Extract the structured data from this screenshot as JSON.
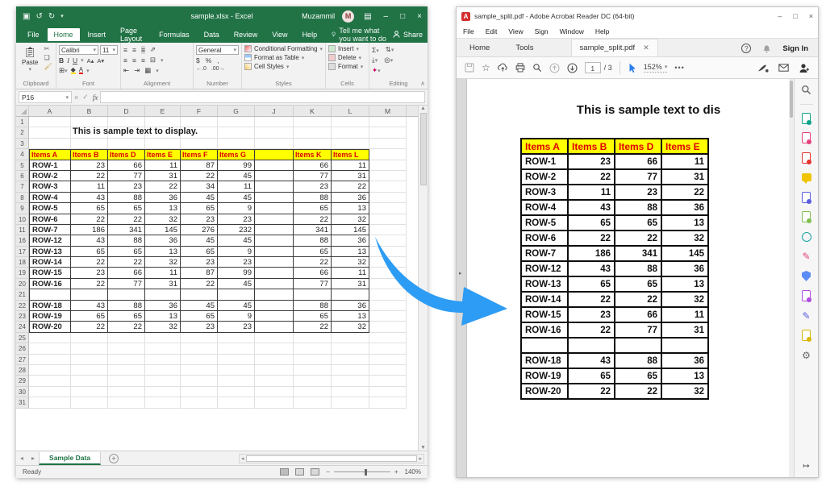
{
  "excel": {
    "title": "sample.xlsx - Excel",
    "user": "Muzammil",
    "avatar_letter": "M",
    "menu_tabs": [
      "File",
      "Home",
      "Insert",
      "Page Layout",
      "Formulas",
      "Data",
      "Review",
      "View",
      "Help"
    ],
    "active_tab": "Home",
    "tell_me": "Tell me what you want to do",
    "share_label": "Share",
    "ribbon": {
      "paste_label": "Paste",
      "font_name": "Calibri",
      "font_size": "11",
      "bold": "B",
      "italic": "I",
      "underline": "U",
      "number_format": "General",
      "styles_buttons": [
        "Conditional Formatting",
        "Format as Table",
        "Cell Styles"
      ],
      "cells_buttons": [
        "Insert",
        "Delete",
        "Format"
      ],
      "group_labels": [
        "Clipboard",
        "Font",
        "Alignment",
        "Number",
        "Styles",
        "Cells",
        "Editing"
      ]
    },
    "formula_bar": {
      "name_box": "P16",
      "fx": "fx"
    },
    "grid": {
      "columns": [
        "A",
        "B",
        "D",
        "E",
        "F",
        "G",
        "J",
        "K",
        "L",
        "M"
      ],
      "rows": [
        {
          "num": 1
        },
        {
          "num": 2,
          "text_overlay": "This is sample text to display."
        },
        {
          "num": 3
        },
        {
          "num": 4,
          "type": "header",
          "cells": [
            "Items A",
            "Items B",
            "Items D",
            "Items E",
            "Items F",
            "Items G",
            "",
            "Items K",
            "Items L"
          ]
        },
        {
          "num": 5,
          "type": "data",
          "label": "ROW-1",
          "values": [
            23,
            66,
            11,
            87,
            99,
            "",
            66,
            11
          ]
        },
        {
          "num": 6,
          "type": "data",
          "label": "ROW-2",
          "values": [
            22,
            77,
            31,
            22,
            45,
            "",
            77,
            31
          ]
        },
        {
          "num": 7,
          "type": "data",
          "label": "ROW-3",
          "values": [
            11,
            23,
            22,
            34,
            11,
            "",
            23,
            22
          ]
        },
        {
          "num": 8,
          "type": "data",
          "label": "ROW-4",
          "values": [
            43,
            88,
            36,
            45,
            45,
            "",
            88,
            36
          ]
        },
        {
          "num": 9,
          "type": "data",
          "label": "ROW-5",
          "values": [
            65,
            65,
            13,
            65,
            9,
            "",
            65,
            13
          ]
        },
        {
          "num": 10,
          "type": "data",
          "label": "ROW-6",
          "values": [
            22,
            22,
            32,
            23,
            23,
            "",
            22,
            32
          ]
        },
        {
          "num": 11,
          "type": "data",
          "label": "ROW-7",
          "values": [
            186,
            341,
            145,
            276,
            232,
            "",
            341,
            145
          ]
        },
        {
          "num": 16,
          "type": "data",
          "label": "ROW-12",
          "values": [
            43,
            88,
            36,
            45,
            45,
            "",
            88,
            36
          ]
        },
        {
          "num": 17,
          "type": "data",
          "label": "ROW-13",
          "values": [
            65,
            65,
            13,
            65,
            9,
            "",
            65,
            13
          ]
        },
        {
          "num": 18,
          "type": "data",
          "label": "ROW-14",
          "values": [
            22,
            22,
            32,
            23,
            23,
            "",
            22,
            32
          ]
        },
        {
          "num": 19,
          "type": "data",
          "label": "ROW-15",
          "values": [
            23,
            66,
            11,
            87,
            99,
            "",
            66,
            11
          ]
        },
        {
          "num": 20,
          "type": "data",
          "label": "ROW-16",
          "values": [
            22,
            77,
            31,
            22,
            45,
            "",
            77,
            31
          ]
        },
        {
          "num": 21,
          "type": "empty"
        },
        {
          "num": 22,
          "type": "data",
          "label": "ROW-18",
          "values": [
            43,
            88,
            36,
            45,
            45,
            "",
            88,
            36
          ]
        },
        {
          "num": 23,
          "type": "data",
          "label": "ROW-19",
          "values": [
            65,
            65,
            13,
            65,
            9,
            "",
            65,
            13
          ]
        },
        {
          "num": 24,
          "type": "data",
          "label": "ROW-20",
          "values": [
            22,
            22,
            32,
            23,
            23,
            "",
            22,
            32
          ]
        },
        {
          "num": 25
        },
        {
          "num": 26
        },
        {
          "num": 27
        },
        {
          "num": 28
        },
        {
          "num": 29
        },
        {
          "num": 30
        },
        {
          "num": 31
        }
      ]
    },
    "sheet_tab": "Sample Data",
    "status": "Ready",
    "zoom": "140%"
  },
  "arrow": {
    "color": "#2d9cf4"
  },
  "pdf": {
    "title": "sample_split.pdf - Adobe Acrobat Reader DC (64-bit)",
    "app_icon_letter": "A",
    "menus": [
      "File",
      "Edit",
      "View",
      "Sign",
      "Window",
      "Help"
    ],
    "tabs": [
      "Home",
      "Tools"
    ],
    "doc_tab": "sample_split.pdf",
    "sign_in": "Sign In",
    "page_current": "1",
    "page_total": "/ 3",
    "zoom": "152%",
    "doc": {
      "title": "This is sample text to dis",
      "table_headers": [
        "Items A",
        "Items B",
        "Items D",
        "Items E"
      ],
      "table_rows": [
        {
          "label": "ROW-1",
          "values": [
            23,
            66,
            11
          ]
        },
        {
          "label": "ROW-2",
          "values": [
            22,
            77,
            31
          ]
        },
        {
          "label": "ROW-3",
          "values": [
            11,
            23,
            22
          ]
        },
        {
          "label": "ROW-4",
          "values": [
            43,
            88,
            36
          ]
        },
        {
          "label": "ROW-5",
          "values": [
            65,
            65,
            13
          ]
        },
        {
          "label": "ROW-6",
          "values": [
            22,
            22,
            32
          ]
        },
        {
          "label": "ROW-7",
          "values": [
            186,
            341,
            145
          ]
        },
        {
          "label": "ROW-12",
          "values": [
            43,
            88,
            36
          ]
        },
        {
          "label": "ROW-13",
          "values": [
            65,
            65,
            13
          ]
        },
        {
          "label": "ROW-14",
          "values": [
            22,
            22,
            32
          ]
        },
        {
          "label": "ROW-15",
          "values": [
            23,
            66,
            11
          ]
        },
        {
          "label": "ROW-16",
          "values": [
            22,
            77,
            31
          ]
        },
        {
          "label": "",
          "values": [
            "",
            "",
            ""
          ]
        },
        {
          "label": "ROW-18",
          "values": [
            43,
            88,
            36
          ]
        },
        {
          "label": "ROW-19",
          "values": [
            65,
            65,
            13
          ]
        },
        {
          "label": "ROW-20",
          "values": [
            22,
            22,
            32
          ]
        }
      ]
    },
    "sidebar_tools": [
      {
        "name": "search-tool",
        "shape": "magnifier",
        "color": "#6b6b6b"
      },
      {
        "name": "export-pdf-tool",
        "shape": "doc",
        "color": "#0fa38a"
      },
      {
        "name": "edit-pdf-tool",
        "shape": "doc",
        "color": "#e5417c"
      },
      {
        "name": "create-pdf-tool",
        "shape": "doc",
        "color": "#e4312b"
      },
      {
        "name": "comment-tool",
        "shape": "comment",
        "color": "#f0c400"
      },
      {
        "name": "combine-files-tool",
        "shape": "doc",
        "color": "#5c5ce0"
      },
      {
        "name": "organize-pages-tool",
        "shape": "doc",
        "color": "#7fbf4d"
      },
      {
        "name": "scan-ocr-tool",
        "shape": "clock",
        "color": "#17a2a2"
      },
      {
        "name": "fill-sign-tool",
        "shape": "pen",
        "color": "#e5417c"
      },
      {
        "name": "protect-tool",
        "shape": "shield",
        "color": "#5b8bf7"
      },
      {
        "name": "stamp-tool",
        "shape": "doc",
        "color": "#b14ae0"
      },
      {
        "name": "certificates-tool",
        "shape": "pen",
        "color": "#5c5ce0"
      },
      {
        "name": "measure-tool",
        "shape": "doc",
        "color": "#d9b400"
      },
      {
        "name": "more-tools",
        "shape": "gear",
        "color": "#6b6b6b"
      }
    ]
  }
}
